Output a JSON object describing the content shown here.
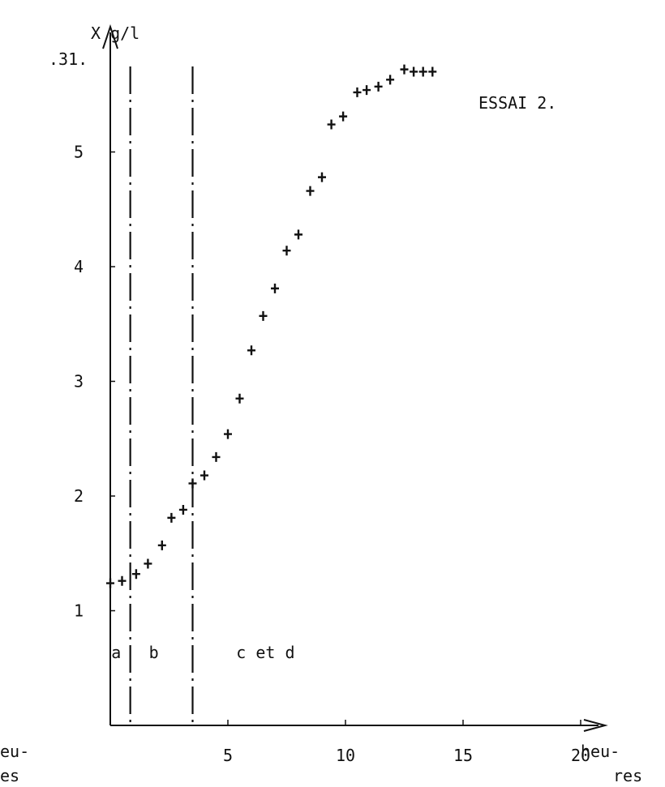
{
  "figure_label": ".31.",
  "corner_cut_text": {
    "left_top": "eu-",
    "left_bottom": "es"
  },
  "chart_data": {
    "type": "scatter",
    "title": "ESSAI 2.",
    "ylabel": "X g/l",
    "xlabel_top": "heu-",
    "xlabel_bottom": "res",
    "x_units": "heures",
    "xlim": [
      0,
      20
    ],
    "ylim": [
      0,
      5.8
    ],
    "x_ticks": [
      5,
      10,
      15,
      20
    ],
    "y_ticks": [
      1,
      2,
      3,
      4,
      5
    ],
    "grid": false,
    "phase_boundaries": [
      0.85,
      3.5
    ],
    "phases": [
      {
        "label": "a",
        "x": 0.25
      },
      {
        "label": "b",
        "x": 1.85
      },
      {
        "label": "c et d",
        "x": 6.6
      }
    ],
    "points": [
      {
        "x": 0.0,
        "y": 1.24
      },
      {
        "x": 0.5,
        "y": 1.26
      },
      {
        "x": 1.1,
        "y": 1.32
      },
      {
        "x": 1.6,
        "y": 1.41
      },
      {
        "x": 2.2,
        "y": 1.57
      },
      {
        "x": 2.6,
        "y": 1.81
      },
      {
        "x": 3.1,
        "y": 1.88
      },
      {
        "x": 3.5,
        "y": 2.11
      },
      {
        "x": 4.0,
        "y": 2.18
      },
      {
        "x": 4.5,
        "y": 2.34
      },
      {
        "x": 5.0,
        "y": 2.54
      },
      {
        "x": 5.5,
        "y": 2.85
      },
      {
        "x": 6.0,
        "y": 3.27
      },
      {
        "x": 6.5,
        "y": 3.57
      },
      {
        "x": 7.0,
        "y": 3.81
      },
      {
        "x": 7.5,
        "y": 4.14
      },
      {
        "x": 8.0,
        "y": 4.28
      },
      {
        "x": 8.5,
        "y": 4.66
      },
      {
        "x": 9.0,
        "y": 4.78
      },
      {
        "x": 9.4,
        "y": 5.24
      },
      {
        "x": 9.9,
        "y": 5.31
      },
      {
        "x": 10.5,
        "y": 5.52
      },
      {
        "x": 10.9,
        "y": 5.54
      },
      {
        "x": 11.4,
        "y": 5.57
      },
      {
        "x": 11.9,
        "y": 5.63
      },
      {
        "x": 12.5,
        "y": 5.72
      },
      {
        "x": 12.9,
        "y": 5.7
      },
      {
        "x": 13.3,
        "y": 5.7
      },
      {
        "x": 13.7,
        "y": 5.7
      }
    ]
  }
}
